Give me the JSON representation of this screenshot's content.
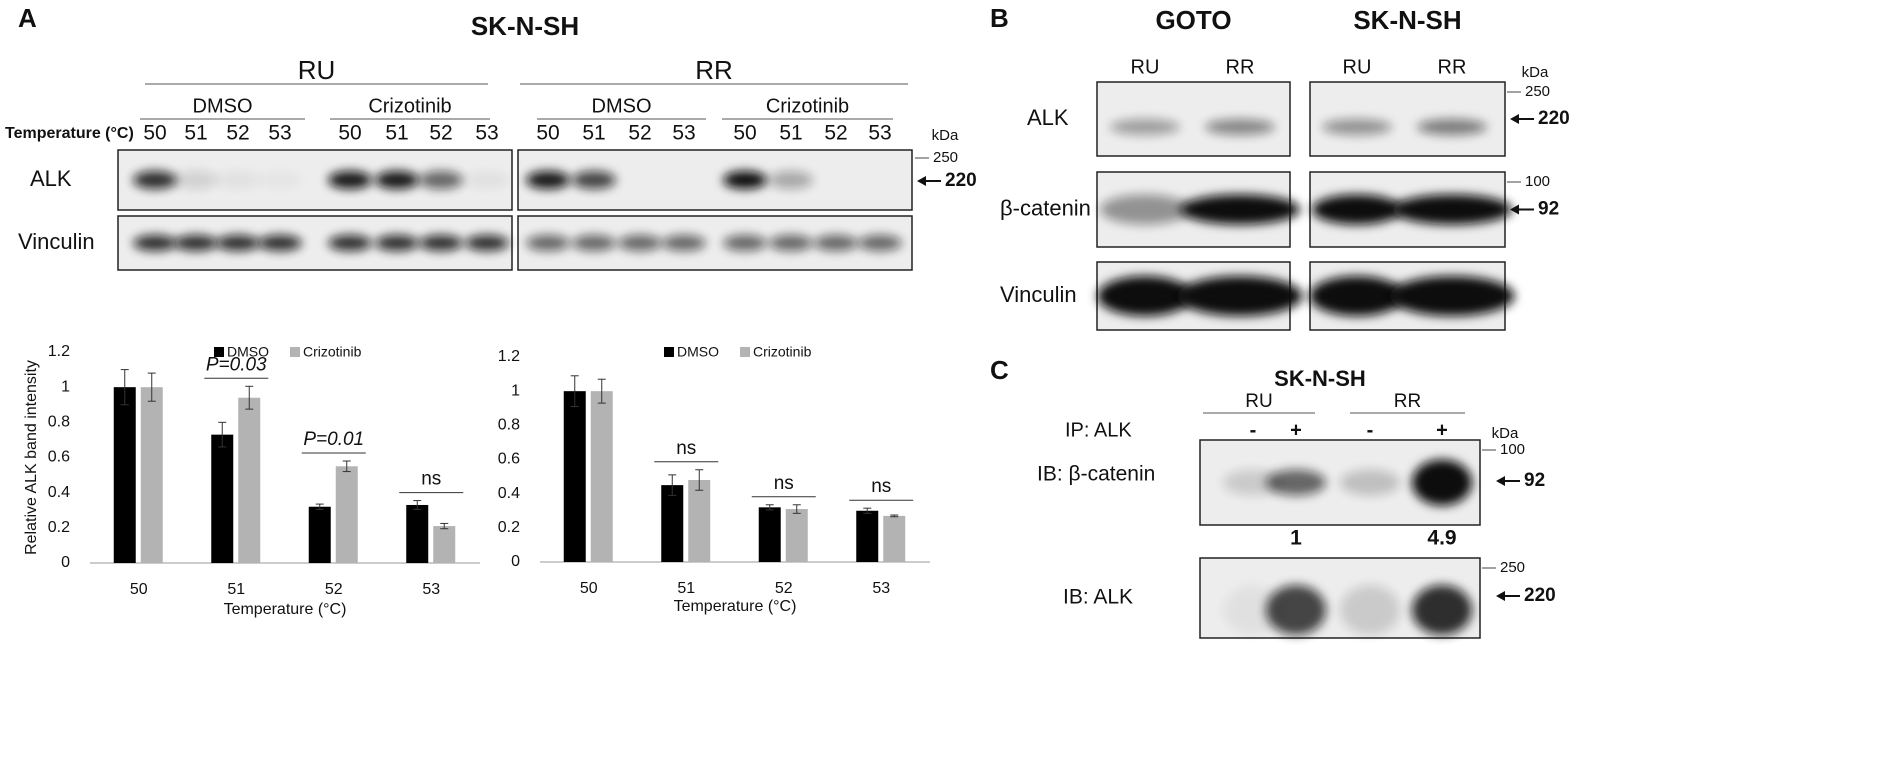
{
  "panel_a": {
    "label": "A",
    "title": "SK-N-SH",
    "temperature_label": "Temperature (°C)",
    "kda": "kDa",
    "cell_lines": [
      {
        "name": "RU",
        "treatments": [
          {
            "name": "DMSO",
            "temperatures": [
              "50",
              "51",
              "52",
              "53"
            ]
          },
          {
            "name": "Crizotinib",
            "temperatures": [
              "50",
              "51",
              "52",
              "53"
            ]
          }
        ]
      },
      {
        "name": "RR",
        "treatments": [
          {
            "name": "DMSO",
            "temperatures": [
              "50",
              "51",
              "52",
              "53"
            ]
          },
          {
            "name": "Crizotinib",
            "temperatures": [
              "50",
              "51",
              "52",
              "53"
            ]
          }
        ]
      }
    ],
    "blots": [
      {
        "label": "ALK",
        "marker": 250,
        "size": 220
      },
      {
        "label": "Vinculin"
      }
    ]
  },
  "chart_data": [
    {
      "type": "bar",
      "ylabel": "Relative ALK band intensity",
      "xlabel": "Temperature (°C)",
      "categories": [
        "50",
        "51",
        "52",
        "53"
      ],
      "series": [
        {
          "name": "DMSO",
          "color": "#000000",
          "values": [
            1,
            0.73,
            0.32,
            0.33
          ],
          "errors": [
            0.1,
            0.07,
            0.015,
            0.025
          ]
        },
        {
          "name": "Crizotinib",
          "color": "#b3b3b3",
          "values": [
            1,
            0.94,
            0.55,
            0.21
          ],
          "errors": [
            0.08,
            0.065,
            0.03,
            0.015
          ]
        }
      ],
      "ylim": [
        0,
        1.2
      ],
      "yticks": [
        0,
        0.2,
        0.4,
        0.6,
        0.8,
        1,
        1.2
      ],
      "annotations": [
        {
          "category": "51",
          "text": "P=0.03"
        },
        {
          "category": "52",
          "text": "P=0.01"
        },
        {
          "category": "53",
          "text": "ns"
        }
      ]
    },
    {
      "type": "bar",
      "xlabel": "Temperature (°C)",
      "categories": [
        "50",
        "51",
        "52",
        "53"
      ],
      "series": [
        {
          "name": "DMSO",
          "color": "#000000",
          "values": [
            1,
            0.45,
            0.32,
            0.3
          ],
          "errors": [
            0.09,
            0.06,
            0.015,
            0.015
          ]
        },
        {
          "name": "Crizotinib",
          "color": "#b3b3b3",
          "values": [
            1,
            0.48,
            0.31,
            0.27
          ],
          "errors": [
            0.07,
            0.06,
            0.025,
            0.005
          ]
        }
      ],
      "ylim": [
        0,
        1.2
      ],
      "yticks": [
        0,
        0.2,
        0.4,
        0.6,
        0.8,
        1,
        1.2
      ],
      "annotations": [
        {
          "category": "51",
          "text": "ns"
        },
        {
          "category": "52",
          "text": "ns"
        },
        {
          "category": "53",
          "text": "ns"
        }
      ]
    }
  ],
  "panel_b": {
    "label": "B",
    "kda": "kDa",
    "cell_lines": [
      {
        "name": "GOTO",
        "lanes": [
          "RU",
          "RR"
        ]
      },
      {
        "name": "SK-N-SH",
        "lanes": [
          "RU",
          "RR"
        ]
      }
    ],
    "blots": [
      {
        "label": "ALK",
        "marker": 250,
        "size": 220
      },
      {
        "label": "β-catenin",
        "marker": 100,
        "size": 92
      },
      {
        "label": "Vinculin"
      }
    ]
  },
  "panel_c": {
    "label": "C",
    "title": "SK-N-SH",
    "kda": "kDa",
    "ip_label": "IP: ALK",
    "groups": [
      {
        "name": "RU",
        "ip": [
          "-",
          "+"
        ]
      },
      {
        "name": "RR",
        "ip": [
          "-",
          "+"
        ]
      }
    ],
    "blots": [
      {
        "label": "IB: β-catenin",
        "marker": 100,
        "size": 92,
        "quantification": [
          1,
          4.9
        ]
      },
      {
        "label": "IB: ALK",
        "marker": 250,
        "size": 220
      }
    ]
  }
}
